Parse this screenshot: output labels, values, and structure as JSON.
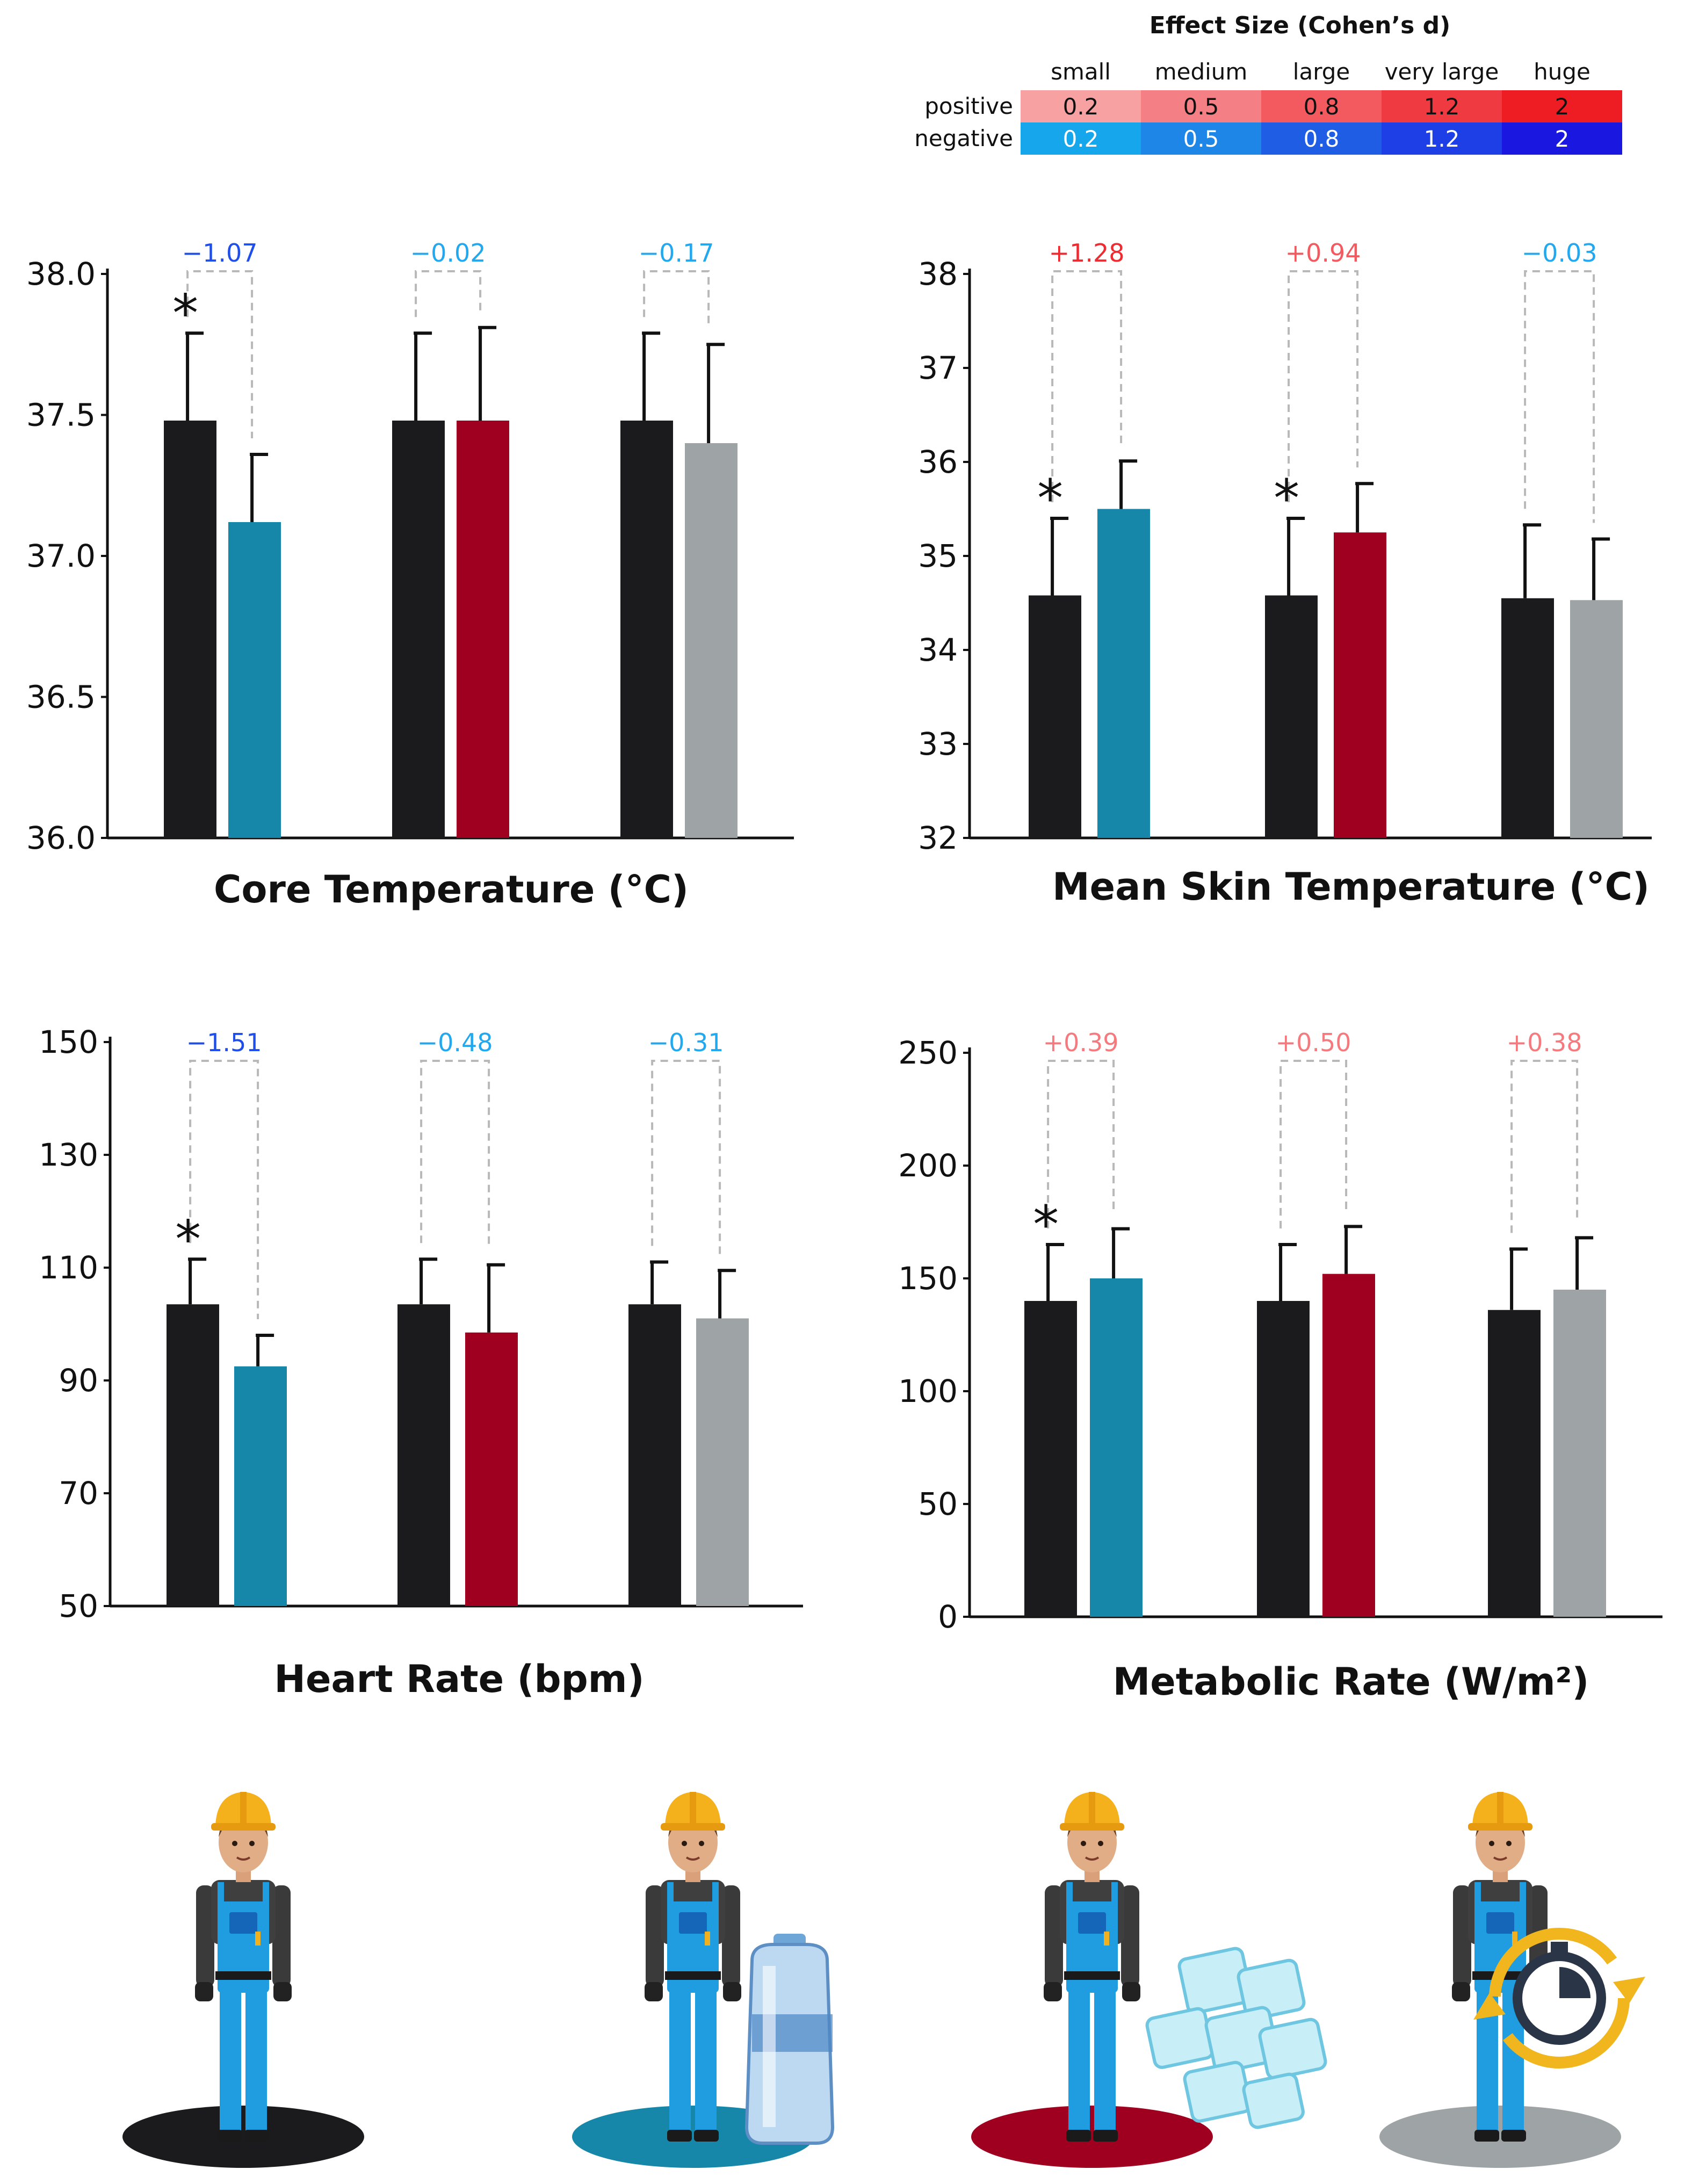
{
  "legend": {
    "title": "Effect Size (Cohen’s d)",
    "columns": [
      "small",
      "medium",
      "large",
      "very large",
      "huge"
    ],
    "rows": [
      {
        "label": "positive",
        "values": [
          "0.2",
          "0.5",
          "0.8",
          "1.2",
          "2"
        ],
        "colors": [
          "#f7a1a3",
          "#f47f84",
          "#f25a60",
          "#f03a41",
          "#ee1c23"
        ]
      },
      {
        "label": "negative",
        "values": [
          "0.2",
          "0.5",
          "0.8",
          "1.2",
          "2"
        ],
        "colors": [
          "#16a6ec",
          "#1d86e6",
          "#1f5ee4",
          "#1f3fe6",
          "#1a18e0"
        ]
      }
    ]
  },
  "colors": {
    "control": "#1b1a1c",
    "water": "#1687a8",
    "ice": "#a0001f",
    "timing": "#9ea3a6",
    "positive_small": "#f57a7e",
    "positive_large": "#ef2a31",
    "negative_small": "#22a8ee",
    "negative_large": "#1f4ee8"
  },
  "chart_data": [
    {
      "id": "core",
      "type": "bar",
      "title": "Core Temperature (°C)",
      "xlabel": "",
      "ylabel": "",
      "ylim": [
        36.0,
        38.0
      ],
      "yticks": [
        "36.0",
        "36.5",
        "37.0",
        "37.5",
        "38.0"
      ],
      "groups": [
        {
          "bars": [
            {
              "series": "control",
              "value": 37.48,
              "error": 0.31
            },
            {
              "series": "water",
              "value": 37.12,
              "error": 0.24
            }
          ],
          "effect": "−1.07",
          "effect_color": "#1f4ee8",
          "significant": true
        },
        {
          "bars": [
            {
              "series": "control",
              "value": 37.48,
              "error": 0.31
            },
            {
              "series": "ice",
              "value": 37.48,
              "error": 0.33
            }
          ],
          "effect": "−0.02",
          "effect_color": "#22a8ee",
          "significant": false
        },
        {
          "bars": [
            {
              "series": "control",
              "value": 37.48,
              "error": 0.31
            },
            {
              "series": "timing",
              "value": 37.4,
              "error": 0.35
            }
          ],
          "effect": "−0.17",
          "effect_color": "#22a8ee",
          "significant": false
        }
      ]
    },
    {
      "id": "skin",
      "type": "bar",
      "title": "Mean Skin Temperature (°C)",
      "xlabel": "",
      "ylabel": "",
      "ylim": [
        32,
        38
      ],
      "yticks": [
        "32",
        "33",
        "34",
        "35",
        "36",
        "37",
        "38"
      ],
      "groups": [
        {
          "bars": [
            {
              "series": "control",
              "value": 34.58,
              "error": 0.82
            },
            {
              "series": "water",
              "value": 35.5,
              "error": 0.51
            }
          ],
          "effect": "+1.28",
          "effect_color": "#ef2a31",
          "significant": true
        },
        {
          "bars": [
            {
              "series": "control",
              "value": 34.58,
              "error": 0.82
            },
            {
              "series": "ice",
              "value": 35.25,
              "error": 0.52
            }
          ],
          "effect": "+0.94",
          "effect_color": "#f25a60",
          "significant": true
        },
        {
          "bars": [
            {
              "series": "control",
              "value": 34.55,
              "error": 0.78
            },
            {
              "series": "timing",
              "value": 34.53,
              "error": 0.65
            }
          ],
          "effect": "−0.03",
          "effect_color": "#22a8ee",
          "significant": false
        }
      ]
    },
    {
      "id": "hr",
      "type": "bar",
      "title": "Heart Rate (bpm)",
      "xlabel": "",
      "ylabel": "",
      "ylim": [
        50,
        150
      ],
      "yticks": [
        "50",
        "70",
        "90",
        "110",
        "130",
        "150"
      ],
      "groups": [
        {
          "bars": [
            {
              "series": "control",
              "value": 103.5,
              "error": 8
            },
            {
              "series": "water",
              "value": 92.5,
              "error": 5.5
            }
          ],
          "effect": "−1.51",
          "effect_color": "#1f4ee8",
          "significant": true
        },
        {
          "bars": [
            {
              "series": "control",
              "value": 103.5,
              "error": 8
            },
            {
              "series": "ice",
              "value": 98.5,
              "error": 12
            }
          ],
          "effect": "−0.48",
          "effect_color": "#22a8ee",
          "significant": false
        },
        {
          "bars": [
            {
              "series": "control",
              "value": 103.5,
              "error": 7.5
            },
            {
              "series": "timing",
              "value": 101,
              "error": 8.5
            }
          ],
          "effect": "−0.31",
          "effect_color": "#22a8ee",
          "significant": false
        }
      ]
    },
    {
      "id": "met",
      "type": "bar",
      "title": "Metabolic Rate (W/m²)",
      "xlabel": "",
      "ylabel": "",
      "ylim": [
        0,
        250
      ],
      "yticks": [
        "0",
        "50",
        "100",
        "150",
        "200",
        "250"
      ],
      "groups": [
        {
          "bars": [
            {
              "series": "control",
              "value": 140,
              "error": 25
            },
            {
              "series": "water",
              "value": 150,
              "error": 22
            }
          ],
          "effect": "+0.39",
          "effect_color": "#f57a7e",
          "significant": true
        },
        {
          "bars": [
            {
              "series": "control",
              "value": 140,
              "error": 25
            },
            {
              "series": "ice",
              "value": 152,
              "error": 21
            }
          ],
          "effect": "+0.50",
          "effect_color": "#f57a7e",
          "significant": false
        },
        {
          "bars": [
            {
              "series": "control",
              "value": 136,
              "error": 27
            },
            {
              "series": "timing",
              "value": 145,
              "error": 23
            }
          ],
          "effect": "+0.38",
          "effect_color": "#f57a7e",
          "significant": false
        }
      ]
    }
  ],
  "workers": [
    {
      "condition": "control",
      "prop": "none",
      "prop_icon": "none"
    },
    {
      "condition": "water",
      "prop": "water-bottle",
      "prop_icon": "water-bottle-icon"
    },
    {
      "condition": "ice",
      "prop": "ice-cubes",
      "prop_icon": "ice-cubes-icon"
    },
    {
      "condition": "timing",
      "prop": "stopwatch",
      "prop_icon": "stopwatch-icon"
    }
  ]
}
